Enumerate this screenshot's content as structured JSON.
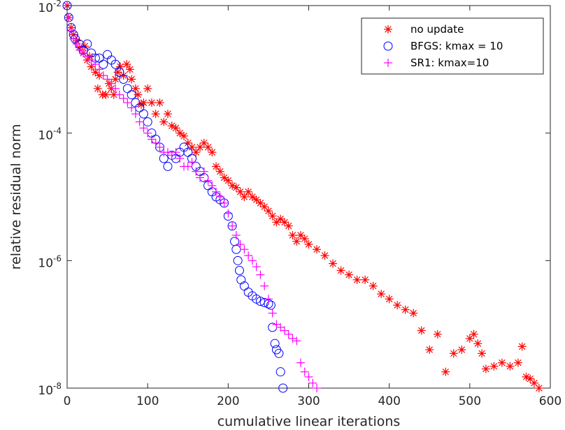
{
  "chart_data": {
    "type": "scatter",
    "title": "",
    "xlabel": "cumulative linear iterations",
    "ylabel": "relative residual norm",
    "xlim": [
      0,
      600
    ],
    "ylim": [
      1e-08,
      0.01
    ],
    "yscale": "log",
    "grid": false,
    "box": true,
    "legend_position": "top-right",
    "x_ticks": [
      0,
      100,
      200,
      300,
      400,
      500,
      600
    ],
    "y_ticks": [
      {
        "value": 0.01,
        "base": "10",
        "exp": "-2"
      },
      {
        "value": 0.0001,
        "base": "10",
        "exp": "-4"
      },
      {
        "value": 1e-06,
        "base": "10",
        "exp": "-6"
      },
      {
        "value": 1e-08,
        "base": "10",
        "exp": "-8"
      }
    ],
    "series": [
      {
        "name": "no update",
        "marker": "asterisk",
        "color": "#ff0000",
        "points": [
          [
            0,
            0.011
          ],
          [
            2,
            0.0065
          ],
          [
            5,
            0.0045
          ],
          [
            8,
            0.0035
          ],
          [
            12,
            0.0028
          ],
          [
            15,
            0.0022
          ],
          [
            20,
            0.0018
          ],
          [
            22,
            0.0023
          ],
          [
            25,
            0.0014
          ],
          [
            28,
            0.0016
          ],
          [
            30,
            0.0011
          ],
          [
            35,
            0.0009
          ],
          [
            38,
            0.0005
          ],
          [
            40,
            0.0008
          ],
          [
            44,
            0.0004
          ],
          [
            48,
            0.0004
          ],
          [
            52,
            0.0006
          ],
          [
            55,
            0.0005
          ],
          [
            58,
            0.0004
          ],
          [
            60,
            0.0007
          ],
          [
            63,
            0.0009
          ],
          [
            66,
            0.0011
          ],
          [
            70,
            0.0008
          ],
          [
            74,
            0.0012
          ],
          [
            78,
            0.001
          ],
          [
            80,
            0.0007
          ],
          [
            85,
            0.0005
          ],
          [
            88,
            0.0004
          ],
          [
            92,
            0.00028
          ],
          [
            95,
            0.0003
          ],
          [
            100,
            0.0005
          ],
          [
            105,
            0.0003
          ],
          [
            110,
            0.0002
          ],
          [
            115,
            0.0003
          ],
          [
            120,
            0.00015
          ],
          [
            125,
            0.0002
          ],
          [
            130,
            0.00013
          ],
          [
            135,
            0.00012
          ],
          [
            140,
            0.0001
          ],
          [
            145,
            9e-05
          ],
          [
            150,
            7e-05
          ],
          [
            155,
            6e-05
          ],
          [
            160,
            5e-05
          ],
          [
            165,
            6e-05
          ],
          [
            170,
            7e-05
          ],
          [
            175,
            6e-05
          ],
          [
            180,
            5e-05
          ],
          [
            185,
            3e-05
          ],
          [
            190,
            2.5e-05
          ],
          [
            195,
            2e-05
          ],
          [
            200,
            1.8e-05
          ],
          [
            205,
            1.5e-05
          ],
          [
            210,
            1.4e-05
          ],
          [
            215,
            1.2e-05
          ],
          [
            220,
            1e-05
          ],
          [
            225,
            1.2e-05
          ],
          [
            230,
            1e-05
          ],
          [
            235,
            9e-06
          ],
          [
            240,
            8e-06
          ],
          [
            245,
            7e-06
          ],
          [
            250,
            6e-06
          ],
          [
            255,
            5e-06
          ],
          [
            260,
            4e-06
          ],
          [
            265,
            4.5e-06
          ],
          [
            270,
            4e-06
          ],
          [
            275,
            3.5e-06
          ],
          [
            280,
            2.5e-06
          ],
          [
            285,
            2e-06
          ],
          [
            290,
            2.5e-06
          ],
          [
            295,
            2.2e-06
          ],
          [
            300,
            1.8e-06
          ],
          [
            310,
            1.5e-06
          ],
          [
            320,
            1.2e-06
          ],
          [
            330,
            9e-07
          ],
          [
            340,
            7e-07
          ],
          [
            350,
            6e-07
          ],
          [
            360,
            5e-07
          ],
          [
            370,
            5e-07
          ],
          [
            380,
            4e-07
          ],
          [
            390,
            3e-07
          ],
          [
            400,
            2.5e-07
          ],
          [
            410,
            2e-07
          ],
          [
            420,
            1.7e-07
          ],
          [
            430,
            1.5e-07
          ],
          [
            440,
            8e-08
          ],
          [
            450,
            4e-08
          ],
          [
            460,
            7e-08
          ],
          [
            470,
            1.8e-08
          ],
          [
            480,
            3.5e-08
          ],
          [
            490,
            4e-08
          ],
          [
            500,
            6e-08
          ],
          [
            505,
            7e-08
          ],
          [
            510,
            5e-08
          ],
          [
            515,
            3.5e-08
          ],
          [
            520,
            2e-08
          ],
          [
            530,
            2.2e-08
          ],
          [
            540,
            2.5e-08
          ],
          [
            550,
            2.2e-08
          ],
          [
            560,
            2.5e-08
          ],
          [
            565,
            4.5e-08
          ],
          [
            570,
            1.5e-08
          ],
          [
            575,
            1.4e-08
          ],
          [
            580,
            1.2e-08
          ],
          [
            586,
            8e-09
          ]
        ]
      },
      {
        "name": "BFGS: kmax = 10",
        "marker": "circle",
        "color": "#0000ff",
        "points": [
          [
            0,
            0.011
          ],
          [
            2,
            0.0065
          ],
          [
            5,
            0.0045
          ],
          [
            8,
            0.0035
          ],
          [
            10,
            0.003
          ],
          [
            15,
            0.0025
          ],
          [
            20,
            0.002
          ],
          [
            25,
            0.0025
          ],
          [
            30,
            0.0018
          ],
          [
            35,
            0.0015
          ],
          [
            40,
            0.0015
          ],
          [
            45,
            0.0012
          ],
          [
            50,
            0.0017
          ],
          [
            55,
            0.0014
          ],
          [
            60,
            0.0012
          ],
          [
            65,
            0.0009
          ],
          [
            70,
            0.0007
          ],
          [
            75,
            0.0005
          ],
          [
            80,
            0.0004
          ],
          [
            85,
            0.0003
          ],
          [
            90,
            0.00025
          ],
          [
            95,
            0.0002
          ],
          [
            100,
            0.00015
          ],
          [
            105,
            0.0001
          ],
          [
            110,
            8e-05
          ],
          [
            115,
            6e-05
          ],
          [
            120,
            4e-05
          ],
          [
            125,
            3e-05
          ],
          [
            130,
            4.5e-05
          ],
          [
            135,
            4e-05
          ],
          [
            140,
            5e-05
          ],
          [
            145,
            6e-05
          ],
          [
            150,
            5e-05
          ],
          [
            155,
            4e-05
          ],
          [
            160,
            3e-05
          ],
          [
            165,
            2.5e-05
          ],
          [
            170,
            2e-05
          ],
          [
            175,
            1.5e-05
          ],
          [
            180,
            1.2e-05
          ],
          [
            185,
            1e-05
          ],
          [
            190,
            9e-06
          ],
          [
            195,
            8e-06
          ],
          [
            200,
            5e-06
          ],
          [
            205,
            3.5e-06
          ],
          [
            208,
            2e-06
          ],
          [
            210,
            1.5e-06
          ],
          [
            212,
            1e-06
          ],
          [
            214,
            7e-07
          ],
          [
            216,
            5e-07
          ],
          [
            220,
            4e-07
          ],
          [
            225,
            3.2e-07
          ],
          [
            230,
            2.8e-07
          ],
          [
            235,
            2.5e-07
          ],
          [
            240,
            2.3e-07
          ],
          [
            245,
            2.2e-07
          ],
          [
            250,
            2.1e-07
          ],
          [
            253,
            2e-07
          ],
          [
            255,
            9e-08
          ],
          [
            258,
            5e-08
          ],
          [
            260,
            4e-08
          ],
          [
            263,
            3.5e-08
          ],
          [
            265,
            1.8e-08
          ],
          [
            268,
            1e-08
          ]
        ]
      },
      {
        "name": "SR1: kmax=10",
        "marker": "plus",
        "color": "#ff00ff",
        "points": [
          [
            0,
            0.011
          ],
          [
            2,
            0.0065
          ],
          [
            5,
            0.004
          ],
          [
            8,
            0.003
          ],
          [
            12,
            0.0025
          ],
          [
            16,
            0.002
          ],
          [
            20,
            0.0018
          ],
          [
            25,
            0.0016
          ],
          [
            30,
            0.0014
          ],
          [
            35,
            0.0012
          ],
          [
            40,
            0.001
          ],
          [
            45,
            0.0008
          ],
          [
            50,
            0.0007
          ],
          [
            55,
            0.0006
          ],
          [
            60,
            0.0005
          ],
          [
            65,
            0.0004
          ],
          [
            70,
            0.00035
          ],
          [
            75,
            0.0003
          ],
          [
            80,
            0.00025
          ],
          [
            85,
            0.0002
          ],
          [
            90,
            0.00015
          ],
          [
            95,
            0.00012
          ],
          [
            100,
            0.0001
          ],
          [
            105,
            8e-05
          ],
          [
            110,
            7e-05
          ],
          [
            115,
            6e-05
          ],
          [
            120,
            5e-05
          ],
          [
            125,
            5e-05
          ],
          [
            130,
            4.5e-05
          ],
          [
            135,
            5e-05
          ],
          [
            140,
            4e-05
          ],
          [
            145,
            3e-05
          ],
          [
            150,
            3e-05
          ],
          [
            155,
            3.5e-05
          ],
          [
            160,
            2.5e-05
          ],
          [
            165,
            2e-05
          ],
          [
            170,
            2.5e-05
          ],
          [
            175,
            1.8e-05
          ],
          [
            180,
            1.5e-05
          ],
          [
            185,
            1.2e-05
          ],
          [
            190,
            1e-05
          ],
          [
            195,
            8e-06
          ],
          [
            200,
            5.5e-06
          ],
          [
            205,
            3.5e-06
          ],
          [
            210,
            2.5e-06
          ],
          [
            215,
            1.8e-06
          ],
          [
            220,
            1.5e-06
          ],
          [
            225,
            1.2e-06
          ],
          [
            230,
            1e-06
          ],
          [
            235,
            8e-07
          ],
          [
            240,
            6e-07
          ],
          [
            245,
            4e-07
          ],
          [
            250,
            2.5e-07
          ],
          [
            255,
            1.5e-07
          ],
          [
            260,
            1e-07
          ],
          [
            265,
            9e-08
          ],
          [
            270,
            8e-08
          ],
          [
            275,
            7e-08
          ],
          [
            280,
            6e-08
          ],
          [
            285,
            5.5e-08
          ],
          [
            290,
            2.5e-08
          ],
          [
            295,
            1.8e-08
          ],
          [
            300,
            1.5e-08
          ],
          [
            305,
            1.2e-08
          ],
          [
            310,
            1e-08
          ]
        ]
      }
    ]
  }
}
